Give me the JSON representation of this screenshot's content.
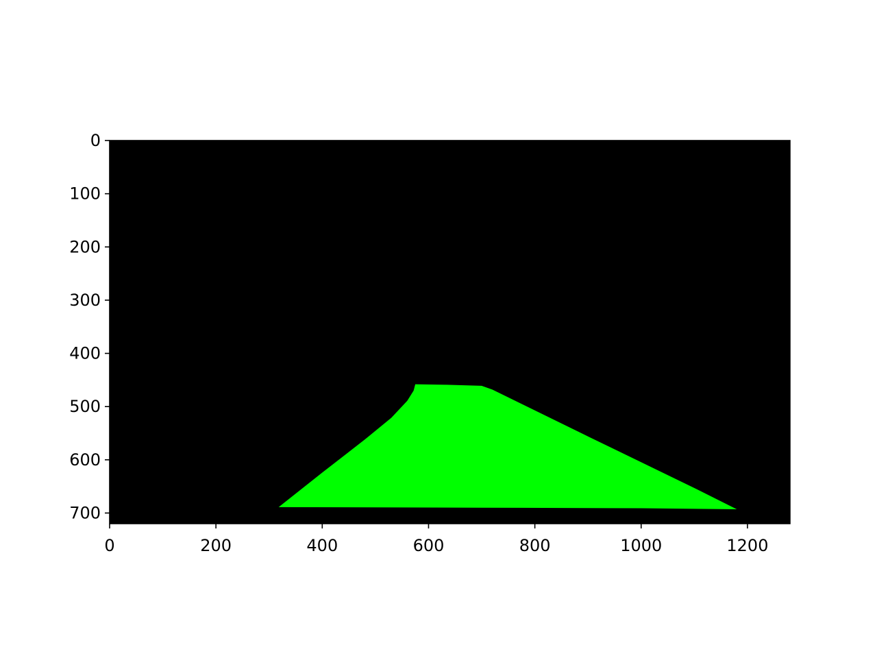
{
  "chart_data": {
    "type": "image",
    "title": "",
    "xlabel": "",
    "ylabel": "",
    "xlim": [
      0,
      1280
    ],
    "ylim": [
      720,
      0
    ],
    "y_axis_inverted": true,
    "grid": false,
    "legend": "none",
    "background_color": "#000000",
    "region_color": "#00ff00",
    "x_ticks": [
      {
        "value": 0,
        "label": "0"
      },
      {
        "value": 200,
        "label": "200"
      },
      {
        "value": 400,
        "label": "400"
      },
      {
        "value": 600,
        "label": "600"
      },
      {
        "value": 800,
        "label": "800"
      },
      {
        "value": 1000,
        "label": "1000"
      },
      {
        "value": 1200,
        "label": "1200"
      }
    ],
    "y_ticks": [
      {
        "value": 0,
        "label": "0"
      },
      {
        "value": 100,
        "label": "100"
      },
      {
        "value": 200,
        "label": "200"
      },
      {
        "value": 300,
        "label": "300"
      },
      {
        "value": 400,
        "label": "400"
      },
      {
        "value": 500,
        "label": "500"
      },
      {
        "value": 600,
        "label": "600"
      },
      {
        "value": 700,
        "label": "700"
      }
    ],
    "region_polygon": [
      [
        318,
        689
      ],
      [
        400,
        624
      ],
      [
        480,
        562
      ],
      [
        530,
        521
      ],
      [
        560,
        489
      ],
      [
        572,
        470
      ],
      [
        575,
        458
      ],
      [
        635,
        459
      ],
      [
        700,
        461
      ],
      [
        720,
        468
      ],
      [
        900,
        556
      ],
      [
        1100,
        653
      ],
      [
        1180,
        693
      ],
      [
        1000,
        691
      ],
      [
        700,
        690
      ],
      [
        318,
        689
      ]
    ]
  }
}
